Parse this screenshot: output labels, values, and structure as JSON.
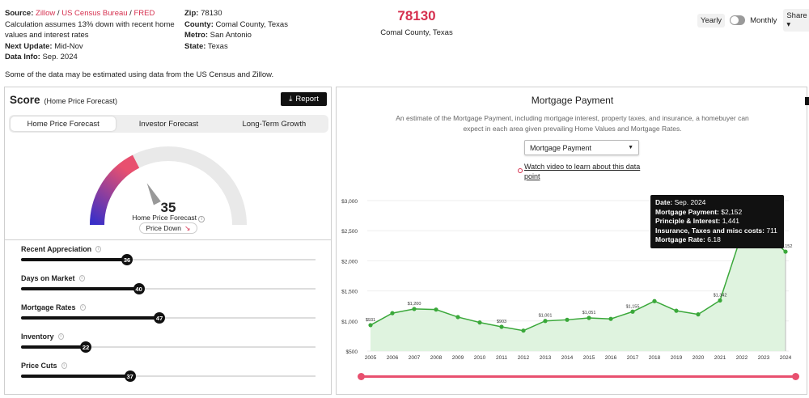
{
  "meta": {
    "source_label": "Source:",
    "sources": [
      "Zillow",
      "US Census Bureau",
      "FRED"
    ],
    "calc_note": "Calculation assumes 13% down with recent home values and interest rates",
    "next_update_label": "Next Update:",
    "next_update": "Mid-Nov",
    "data_info_label": "Data Info:",
    "data_info": "Sep. 2024",
    "zip_label": "Zip:",
    "zip": "78130",
    "county_label": "County:",
    "county": "Comal County, Texas",
    "metro_label": "Metro:",
    "metro": "San Antonio",
    "state_label": "State:",
    "state": "Texas"
  },
  "header": {
    "zip_big": "78130",
    "county_sub": "Comal County, Texas"
  },
  "controls": {
    "yearly": "Yearly",
    "monthly": "Monthly",
    "share": "Share"
  },
  "note": "Some of the data may be estimated using data from the US Census and Zillow.",
  "score": {
    "title": "Score",
    "subtitle": "(Home Price Forecast)",
    "report": "Report",
    "tabs": [
      "Home Price Forecast",
      "Investor Forecast",
      "Long-Term Growth"
    ],
    "gauge_value": "35",
    "gauge_label": "Home Price Forecast",
    "trend": "Price Down",
    "gauge_fraction": 0.35,
    "colors": {
      "low": "#3a2fc8",
      "high": "#e8506f",
      "track": "#e9e9e9"
    }
  },
  "factors": [
    {
      "name": "Recent Appreciation",
      "value": 36
    },
    {
      "name": "Days on Market",
      "value": 40
    },
    {
      "name": "Mortgage Rates",
      "value": 47
    },
    {
      "name": "Inventory",
      "value": 22
    },
    {
      "name": "Price Cuts",
      "value": 37
    }
  ],
  "mortgage": {
    "title": "Mortgage Payment",
    "description": "An estimate of the Mortgage Payment, including mortgage interest, property taxes, and insurance, a homebuyer can expect in each area given prevailing Home Values and Mortgage Rates.",
    "select_value": "Mortgage Payment",
    "video_link": "Watch video to learn about this data point"
  },
  "tooltip": {
    "date_label": "Date:",
    "date": "Sep. 2024",
    "payment_label": "Mortgage Payment:",
    "payment": "$2,152",
    "pi_label": "Principle & Interest:",
    "pi": "1,441",
    "ins_label": "Insurance, Taxes and misc costs:",
    "ins": "711",
    "rate_label": "Mortgage Rate:",
    "rate": "6.18"
  },
  "chart_data": {
    "type": "area",
    "x": [
      "2005",
      "2006",
      "2007",
      "2008",
      "2009",
      "2010",
      "2011",
      "2012",
      "2013",
      "2014",
      "2015",
      "2016",
      "2017",
      "2018",
      "2019",
      "2020",
      "2021",
      "2022",
      "2023",
      "2024"
    ],
    "values": [
      931,
      1130,
      1200,
      1190,
      1065,
      975,
      903,
      840,
      1001,
      1020,
      1051,
      1035,
      1155,
      1330,
      1170,
      1110,
      1342,
      2450,
      2480,
      2152
    ],
    "point_labels": [
      "$931",
      "",
      "$1,200",
      "",
      "",
      "",
      "$903",
      "",
      "$1,001",
      "",
      "$1,051",
      "",
      "$1,155",
      "",
      "",
      "",
      "$1,342",
      "",
      "",
      "$2,152"
    ],
    "y_ticks": [
      "$3,000",
      "$2,500",
      "$2,000",
      "$1,500",
      "$1,000",
      "$500"
    ],
    "y_tick_values": [
      3000,
      2500,
      2000,
      1500,
      1000,
      500
    ],
    "ylim": [
      500,
      3000
    ],
    "color": "#3aa83a",
    "fill": "#dff3df"
  }
}
